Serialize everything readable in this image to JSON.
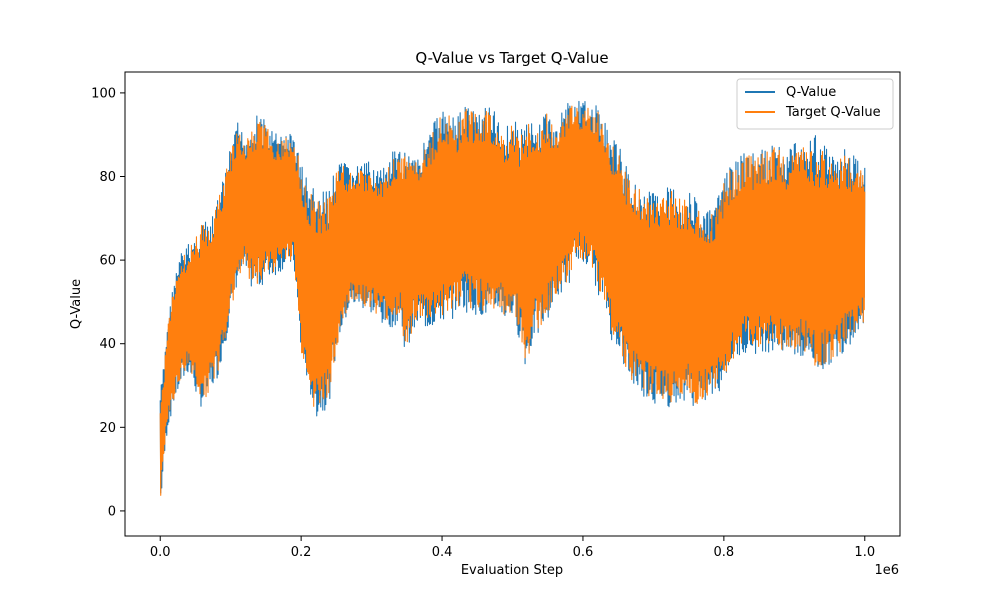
{
  "chart_data": {
    "type": "line",
    "title": "Q-Value vs Target Q-Value",
    "xlabel": "Evaluation Step",
    "ylabel": "Q-Value",
    "x_offset_text": "1e6",
    "xlim": [
      -50000,
      1050000
    ],
    "ylim": [
      -6,
      105
    ],
    "x_ticks": [
      0,
      200000,
      400000,
      600000,
      800000,
      1000000
    ],
    "x_tick_labels": [
      "0.0",
      "0.2",
      "0.4",
      "0.6",
      "0.8",
      "1.0"
    ],
    "y_ticks": [
      0,
      20,
      40,
      60,
      80,
      100
    ],
    "y_tick_labels": [
      "0",
      "20",
      "40",
      "60",
      "80",
      "100"
    ],
    "grid": false,
    "legend_position": "top-right",
    "series": [
      {
        "name": "Q-Value",
        "color": "#1f77b4",
        "x": [
          0,
          5000,
          10000,
          20000,
          30000,
          40000,
          50000,
          60000,
          70000,
          80000,
          90000,
          100000,
          110000,
          120000,
          130000,
          140000,
          150000,
          160000,
          170000,
          180000,
          190000,
          200000,
          210000,
          220000,
          230000,
          240000,
          250000,
          260000,
          270000,
          280000,
          290000,
          300000,
          310000,
          320000,
          330000,
          340000,
          350000,
          360000,
          370000,
          380000,
          390000,
          400000,
          410000,
          420000,
          430000,
          440000,
          450000,
          460000,
          470000,
          480000,
          490000,
          500000,
          510000,
          520000,
          530000,
          540000,
          550000,
          560000,
          570000,
          580000,
          590000,
          600000,
          610000,
          620000,
          630000,
          640000,
          650000,
          660000,
          670000,
          680000,
          690000,
          700000,
          710000,
          720000,
          730000,
          740000,
          750000,
          760000,
          770000,
          780000,
          790000,
          800000,
          810000,
          820000,
          830000,
          840000,
          850000,
          860000,
          870000,
          880000,
          890000,
          900000,
          910000,
          920000,
          930000,
          940000,
          950000,
          960000,
          970000,
          980000,
          990000,
          1000000
        ],
        "upper": [
          29,
          35,
          45,
          56,
          62,
          64,
          66,
          70,
          68,
          74,
          80,
          87,
          93,
          90,
          92,
          96,
          93,
          91,
          90,
          91,
          90,
          84,
          79,
          77,
          76,
          78,
          82,
          84,
          82,
          83,
          83,
          84,
          82,
          82,
          86,
          86,
          87,
          86,
          87,
          90,
          94,
          96,
          96,
          94,
          98,
          97,
          96,
          98,
          97,
          94,
          92,
          95,
          91,
          95,
          92,
          93,
          98,
          90,
          96,
          99,
          98,
          98,
          98,
          97,
          94,
          90,
          88,
          83,
          80,
          78,
          76,
          77,
          77,
          78,
          78,
          75,
          77,
          75,
          72,
          72,
          74,
          80,
          83,
          84,
          86,
          86,
          86,
          87,
          88,
          88,
          86,
          89,
          89,
          89,
          91,
          90,
          86,
          84,
          88,
          86,
          84,
          85
        ],
        "lower": [
          0,
          10,
          19,
          26,
          30,
          33,
          28,
          24,
          28,
          31,
          38,
          46,
          55,
          57,
          53,
          53,
          55,
          56,
          57,
          59,
          58,
          36,
          30,
          22,
          23,
          26,
          38,
          44,
          48,
          49,
          48,
          47,
          45,
          44,
          44,
          45,
          36,
          44,
          44,
          43,
          44,
          45,
          44,
          48,
          48,
          47,
          47,
          46,
          45,
          48,
          45,
          46,
          41,
          33,
          41,
          42,
          46,
          50,
          52,
          54,
          61,
          58,
          60,
          52,
          50,
          41,
          39,
          33,
          30,
          28,
          27,
          25,
          26,
          24,
          26,
          26,
          27,
          24,
          25,
          27,
          27,
          31,
          35,
          36,
          38,
          37,
          38,
          38,
          38,
          38,
          36,
          36,
          36,
          36,
          33,
          33,
          35,
          36,
          38,
          40,
          43,
          44
        ]
      },
      {
        "name": "Target Q-Value",
        "color": "#ff7f0e",
        "x": [
          0,
          5000,
          10000,
          20000,
          30000,
          40000,
          50000,
          60000,
          70000,
          80000,
          90000,
          100000,
          110000,
          120000,
          130000,
          140000,
          150000,
          160000,
          170000,
          180000,
          190000,
          200000,
          210000,
          220000,
          230000,
          240000,
          250000,
          260000,
          270000,
          280000,
          290000,
          300000,
          310000,
          320000,
          330000,
          340000,
          350000,
          360000,
          370000,
          380000,
          390000,
          400000,
          410000,
          420000,
          430000,
          440000,
          450000,
          460000,
          470000,
          480000,
          490000,
          500000,
          510000,
          520000,
          530000,
          540000,
          550000,
          560000,
          570000,
          580000,
          590000,
          600000,
          610000,
          620000,
          630000,
          640000,
          650000,
          660000,
          670000,
          680000,
          690000,
          700000,
          710000,
          720000,
          730000,
          740000,
          750000,
          760000,
          770000,
          780000,
          790000,
          800000,
          810000,
          820000,
          830000,
          840000,
          850000,
          860000,
          870000,
          880000,
          890000,
          900000,
          910000,
          920000,
          930000,
          940000,
          950000,
          960000,
          970000,
          980000,
          990000,
          1000000
        ],
        "upper": [
          26,
          33,
          43,
          55,
          61,
          63,
          65,
          69,
          67,
          73,
          79,
          86,
          92,
          89,
          91,
          95,
          92,
          90,
          89,
          90,
          89,
          82,
          77,
          75,
          74,
          76,
          81,
          83,
          81,
          82,
          82,
          83,
          81,
          81,
          85,
          85,
          86,
          85,
          86,
          89,
          93,
          95,
          95,
          93,
          97,
          96,
          95,
          97,
          96,
          93,
          91,
          94,
          90,
          94,
          91,
          92,
          97,
          89,
          95,
          98,
          97,
          97,
          97,
          96,
          93,
          89,
          87,
          82,
          79,
          77,
          75,
          76,
          76,
          77,
          77,
          74,
          76,
          74,
          71,
          71,
          73,
          79,
          82,
          83,
          85,
          85,
          85,
          86,
          87,
          87,
          85,
          88,
          88,
          87,
          87,
          86,
          84,
          82,
          86,
          84,
          82,
          82
        ],
        "lower": [
          2,
          12,
          21,
          27,
          31,
          34,
          30,
          25,
          29,
          32,
          39,
          47,
          56,
          58,
          54,
          54,
          56,
          57,
          58,
          60,
          59,
          37,
          31,
          23,
          24,
          27,
          39,
          45,
          49,
          50,
          49,
          48,
          46,
          45,
          45,
          46,
          37,
          45,
          45,
          44,
          45,
          46,
          45,
          49,
          49,
          48,
          48,
          47,
          46,
          49,
          46,
          47,
          42,
          35,
          42,
          43,
          47,
          51,
          53,
          55,
          62,
          59,
          61,
          53,
          51,
          42,
          40,
          34,
          31,
          29,
          28,
          26,
          27,
          25,
          27,
          27,
          28,
          25,
          26,
          28,
          28,
          32,
          36,
          37,
          39,
          38,
          39,
          39,
          39,
          39,
          37,
          37,
          37,
          37,
          34,
          34,
          36,
          37,
          39,
          41,
          44,
          45
        ]
      }
    ]
  }
}
